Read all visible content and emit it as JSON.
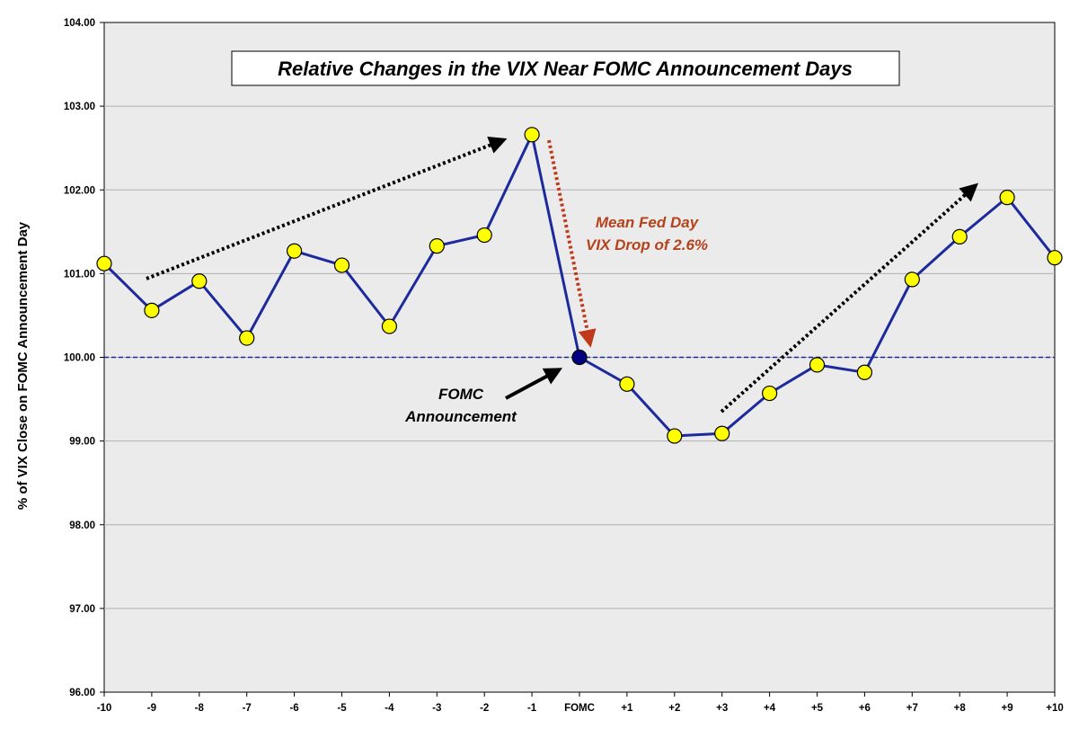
{
  "chart_data": {
    "type": "line",
    "title": "Relative Changes in the VIX Near FOMC Announcement Days",
    "ylabel": "% of VIX Close on FOMC Announcement Day",
    "xlabel": "",
    "ylim": [
      96,
      104
    ],
    "yticks": [
      "96.00",
      "97.00",
      "98.00",
      "99.00",
      "100.00",
      "101.00",
      "102.00",
      "103.00",
      "104.00"
    ],
    "categories": [
      "-10",
      "-9",
      "-8",
      "-7",
      "-6",
      "-5",
      "-4",
      "-3",
      "-2",
      "-1",
      "FOMC",
      "+1",
      "+2",
      "+3",
      "+4",
      "+5",
      "+6",
      "+7",
      "+8",
      "+9",
      "+10"
    ],
    "series": [
      {
        "values": [
          101.12,
          100.56,
          100.91,
          100.23,
          101.27,
          101.1,
          100.37,
          101.33,
          101.46,
          102.66,
          100.0,
          99.68,
          99.06,
          99.09,
          99.57,
          99.91,
          99.82,
          100.93,
          101.44,
          101.91,
          101.19
        ]
      }
    ],
    "reference_line": 100.0,
    "highlight_category": "FOMC",
    "grid": true,
    "annotations": [
      {
        "id": "fed-drop",
        "lines": [
          "Mean Fed Day",
          "VIX Drop of 2.6%"
        ],
        "color": "#b5421a"
      },
      {
        "id": "fomc",
        "lines": [
          "FOMC",
          "Announcement"
        ],
        "color": "#000000"
      }
    ],
    "colors": {
      "line": "#1c2a9c",
      "marker_fill": "#ffff00",
      "marker_highlight": "#000080",
      "plot_bg": "#ebebeb",
      "grid": "#b0b0b0",
      "reference": "#1c2a9c",
      "drop_arrow": "#c0391b",
      "trend_arrow": "#000000"
    }
  }
}
